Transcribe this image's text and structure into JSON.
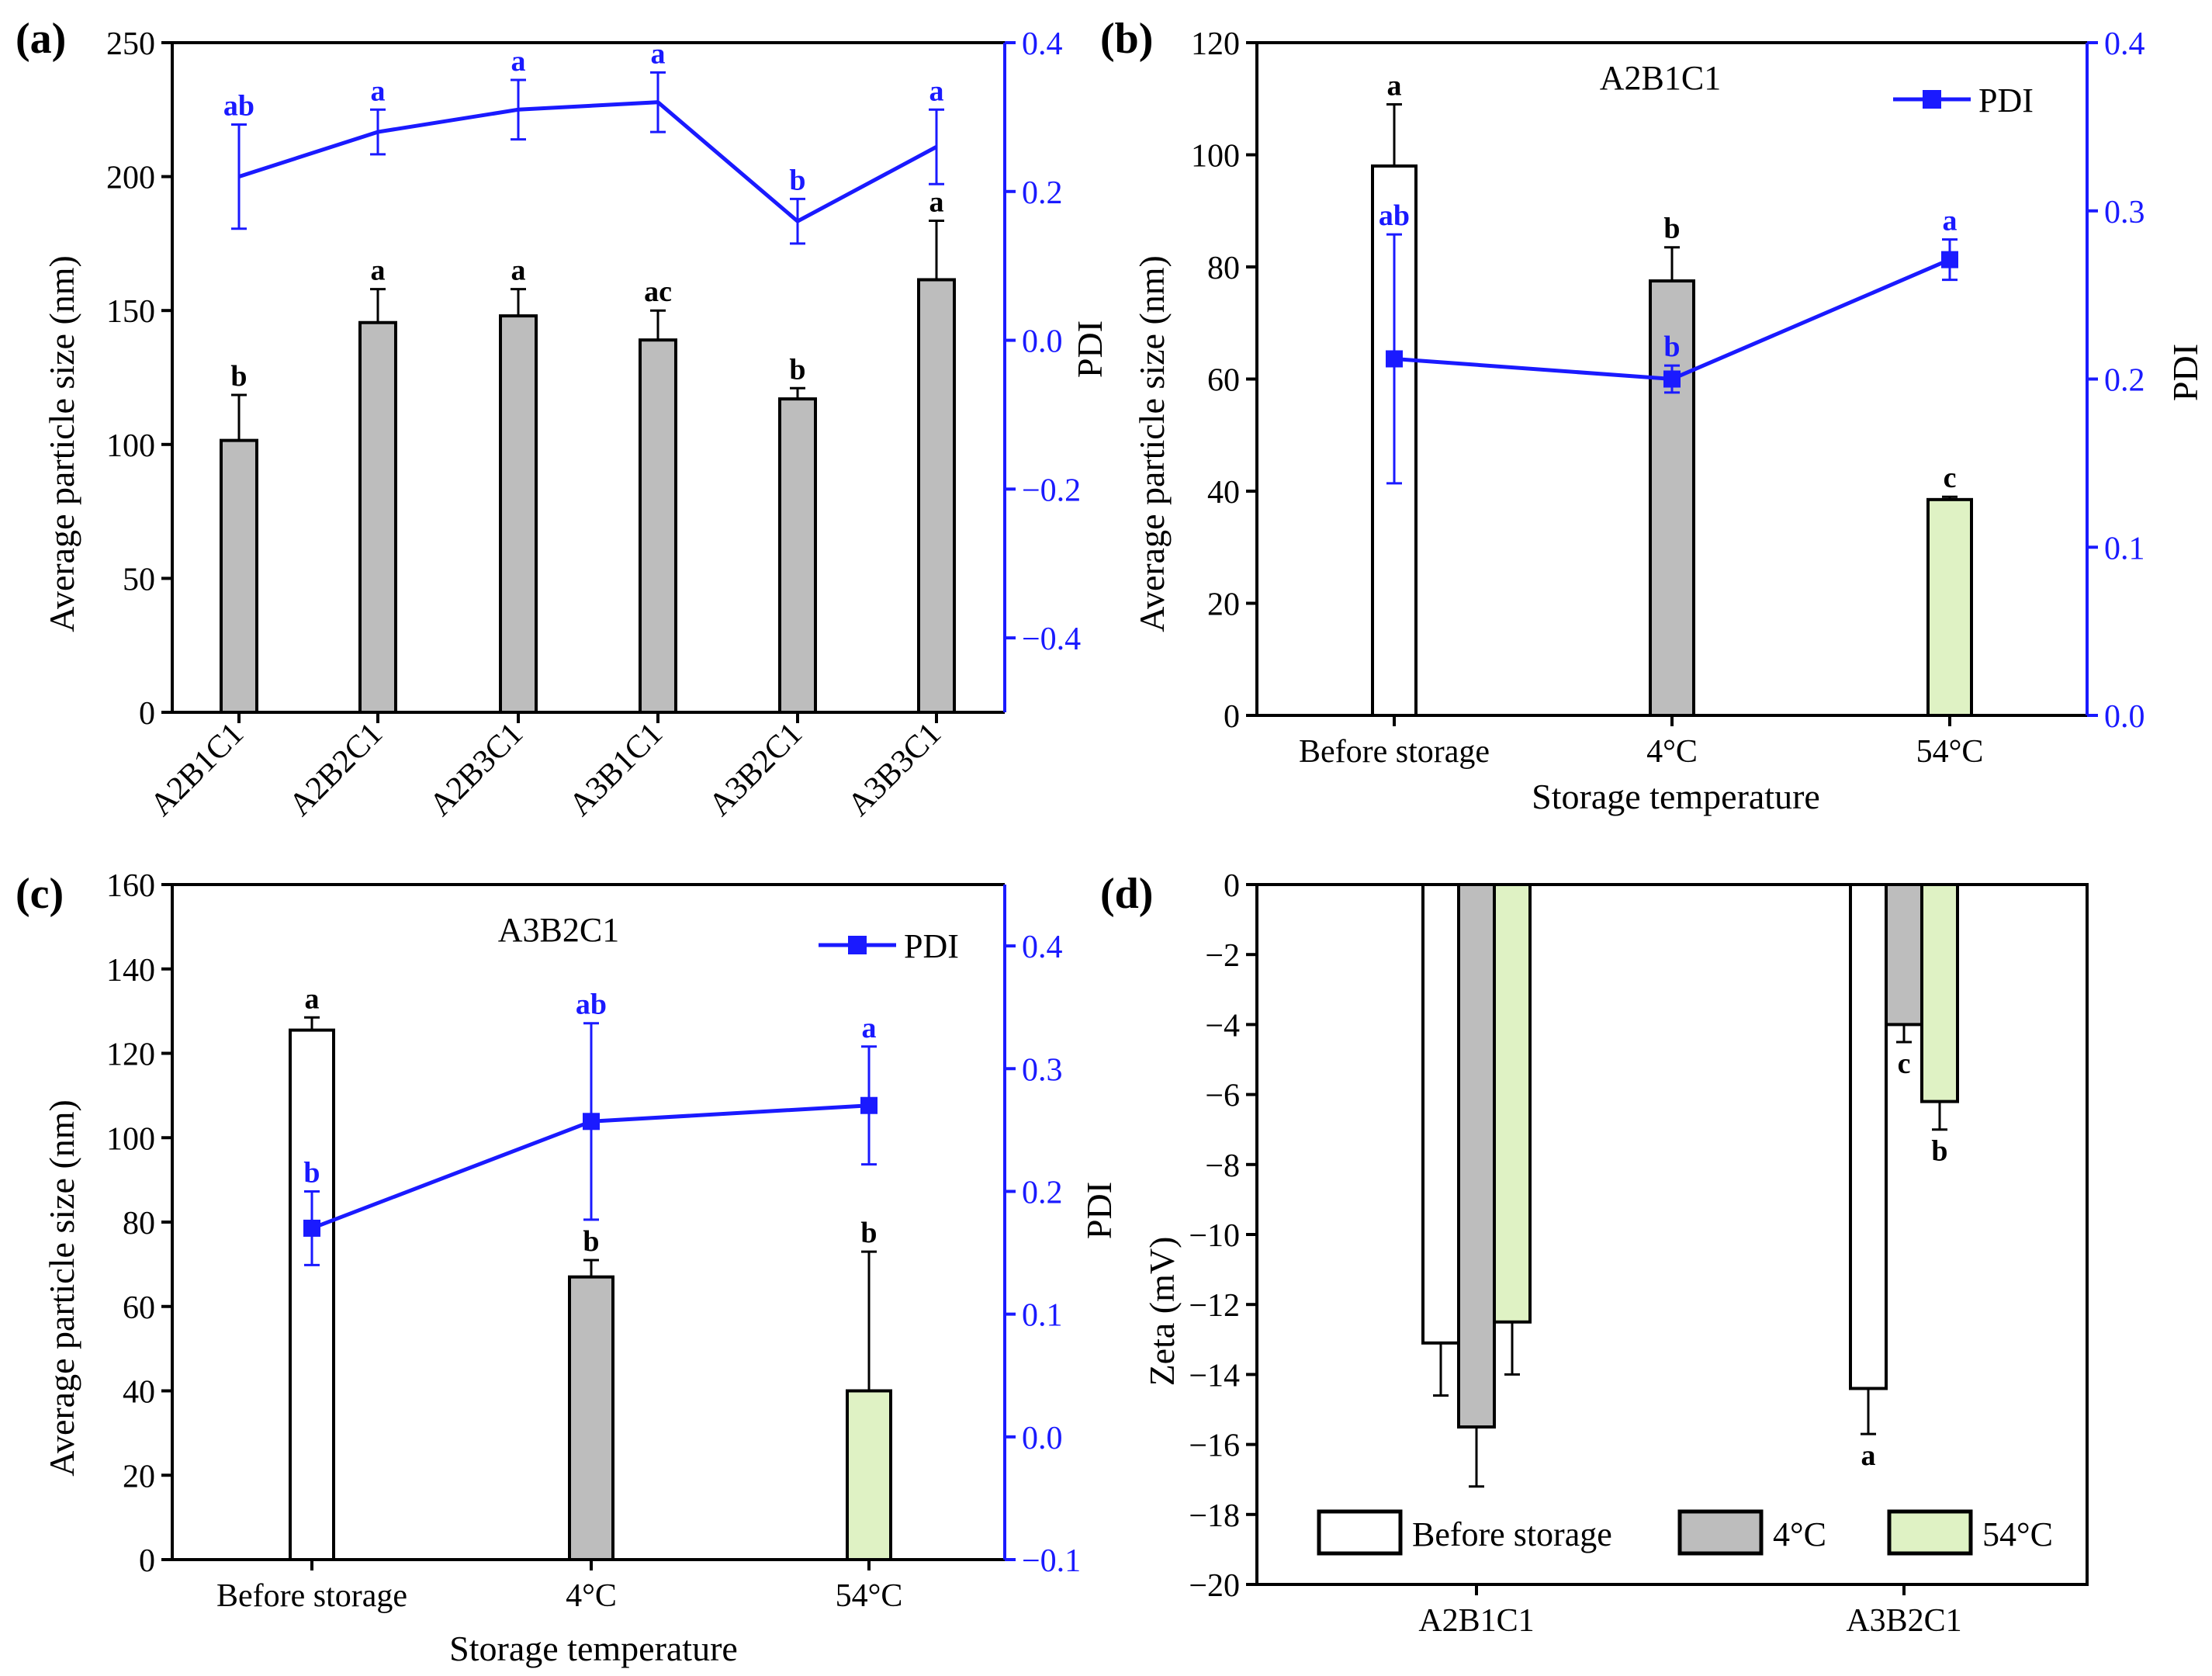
{
  "figure": {
    "colors": {
      "axis": "#000000",
      "pdi": "#1a1aff",
      "bar_before": "#ffffff",
      "bar_4c": "#bdbdbd",
      "bar_54c": "#dff2c4"
    }
  },
  "chart_data": [
    {
      "panel": "(a)",
      "type": "bar+line",
      "title": "",
      "xlabel": "",
      "ylabel": "Average particle size (nm)",
      "y2label": "PDI",
      "ylim": [
        0,
        250
      ],
      "yticks": [
        0,
        50,
        100,
        150,
        200,
        250
      ],
      "y2lim": [
        -0.5,
        0.4
      ],
      "y2ticks": [
        -0.4,
        -0.2,
        0.0,
        0.2,
        0.4
      ],
      "y2ticklabels": [
        "−0.4",
        "−0.2",
        "0.0",
        "0.2",
        "0.4"
      ],
      "categories": [
        "A2B1C1",
        "A2B2C1",
        "A2B3C1",
        "A3B1C1",
        "A3B2C1",
        "A3B3C1"
      ],
      "series": [
        {
          "name": "Average particle size",
          "type": "bar",
          "values": [
            101.5,
            145.5,
            148,
            139,
            117,
            161.5
          ],
          "errors": [
            17,
            12.5,
            10,
            11,
            4,
            22
          ],
          "labels": [
            "b",
            "a",
            "a",
            "ac",
            "b",
            "a"
          ]
        },
        {
          "name": "PDI",
          "type": "line",
          "values": [
            0.22,
            0.28,
            0.31,
            0.32,
            0.16,
            0.26
          ],
          "errors": [
            0.07,
            0.03,
            0.04,
            0.04,
            0.03,
            0.05
          ],
          "labels": [
            "ab",
            "a",
            "a",
            "a",
            "b",
            "a"
          ]
        }
      ]
    },
    {
      "panel": "(b)",
      "type": "bar+line",
      "title": "A2B1C1",
      "xlabel": "Storage temperature",
      "ylabel": "Average particle size (nm)",
      "y2label": "PDI",
      "ylim": [
        0,
        120
      ],
      "yticks": [
        0,
        20,
        40,
        60,
        80,
        100,
        120
      ],
      "y2lim": [
        0.0,
        0.4
      ],
      "y2ticks": [
        0.0,
        0.1,
        0.2,
        0.3,
        0.4
      ],
      "y2ticklabels": [
        "0.0",
        "0.1",
        "0.2",
        "0.3",
        "0.4"
      ],
      "categories": [
        "Before storage",
        "4°C",
        "54°C"
      ],
      "legend": [
        "PDI"
      ],
      "series": [
        {
          "name": "Average particle size",
          "type": "bar",
          "values": [
            98,
            77.5,
            38.5
          ],
          "errors": [
            11,
            6,
            0.5
          ],
          "labels": [
            "a",
            "b",
            "c"
          ]
        },
        {
          "name": "PDI",
          "type": "line",
          "values": [
            0.212,
            0.2,
            0.271
          ],
          "errors": [
            0.074,
            0.008,
            0.012
          ],
          "labels": [
            "ab",
            "b",
            "a"
          ]
        }
      ]
    },
    {
      "panel": "(c)",
      "type": "bar+line",
      "title": "A3B2C1",
      "xlabel": "Storage temperature",
      "ylabel": "Average particle size (nm)",
      "y2label": "PDI",
      "ylim": [
        0,
        160
      ],
      "yticks": [
        0,
        20,
        40,
        60,
        80,
        100,
        120,
        140,
        160
      ],
      "y2lim": [
        -0.1,
        0.45
      ],
      "y2ticks": [
        -0.1,
        0.0,
        0.1,
        0.2,
        0.3,
        0.4
      ],
      "y2ticklabels": [
        "−0.1",
        "0.0",
        "0.1",
        "0.2",
        "0.3",
        "0.4"
      ],
      "categories": [
        "Before storage",
        "4°C",
        "54°C"
      ],
      "legend": [
        "PDI"
      ],
      "series": [
        {
          "name": "Average particle size",
          "type": "bar",
          "values": [
            125.5,
            67,
            40
          ],
          "errors": [
            3,
            4,
            33
          ],
          "labels": [
            "a",
            "b",
            "b"
          ]
        },
        {
          "name": "PDI",
          "type": "line",
          "values": [
            0.17,
            0.257,
            0.27
          ],
          "errors": [
            0.03,
            0.08,
            0.048
          ],
          "labels": [
            "b",
            "ab",
            "a"
          ]
        }
      ]
    },
    {
      "panel": "(d)",
      "type": "bar",
      "title": "",
      "xlabel": "",
      "ylabel": "Zeta (mV)",
      "ylim": [
        -20,
        0
      ],
      "yticks": [
        -20,
        -18,
        -16,
        -14,
        -12,
        -10,
        -8,
        -6,
        -4,
        -2,
        0
      ],
      "yticklabels": [
        "−20",
        "−18",
        "−16",
        "−14",
        "−12",
        "−10",
        "−8",
        "−6",
        "−4",
        "−2",
        "0"
      ],
      "categories": [
        "A2B1C1",
        "A3B2C1"
      ],
      "legend": [
        "Before storage",
        "4°C",
        "54°C"
      ],
      "series": [
        {
          "name": "Before storage",
          "values": [
            -13.1,
            -14.4
          ],
          "errors": [
            1.5,
            1.3
          ],
          "labels": [
            "",
            "a"
          ]
        },
        {
          "name": "4°C",
          "values": [
            -15.5,
            -4.0
          ],
          "errors": [
            1.7,
            0.5
          ],
          "labels": [
            "",
            "c"
          ]
        },
        {
          "name": "54°C",
          "values": [
            -12.5,
            -6.2
          ],
          "errors": [
            1.5,
            0.8
          ],
          "labels": [
            "",
            "b"
          ]
        }
      ]
    }
  ]
}
